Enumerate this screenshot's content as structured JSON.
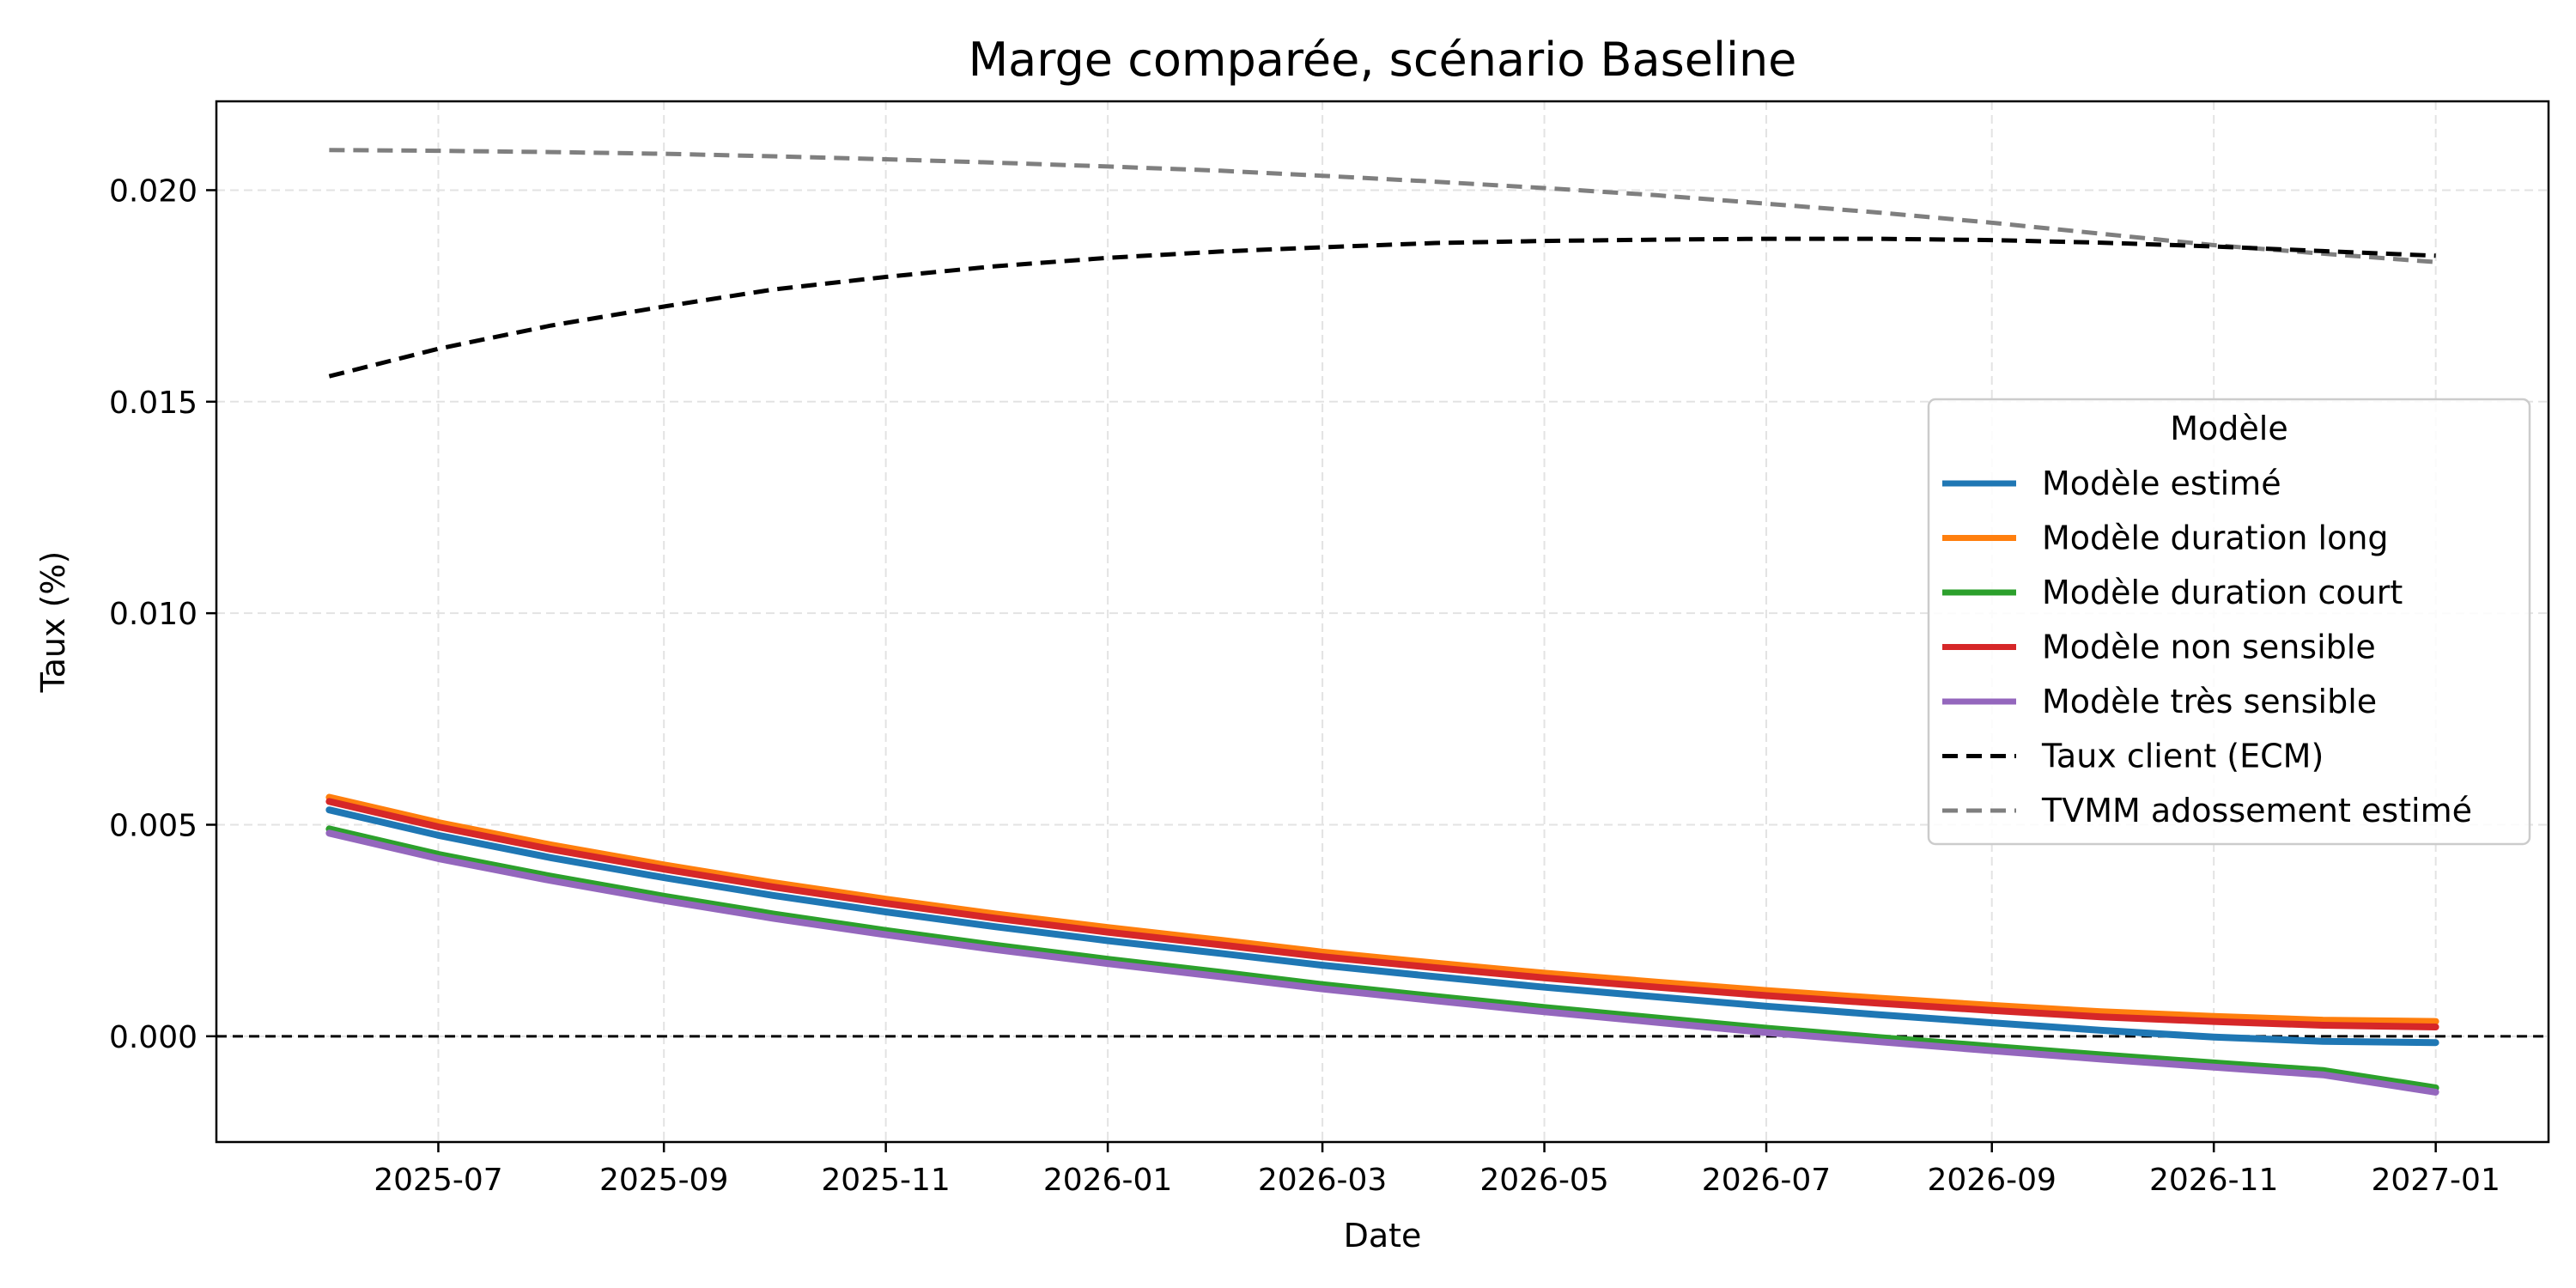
{
  "chart_data": {
    "type": "line",
    "title": "Marge comparée, scénario Baseline",
    "xlabel": "Date",
    "ylabel": "Taux (%)",
    "x_dates": [
      "2025-06-01",
      "2025-07-01",
      "2025-08-01",
      "2025-09-01",
      "2025-10-01",
      "2025-11-01",
      "2025-12-01",
      "2026-01-01",
      "2026-02-01",
      "2026-03-01",
      "2026-04-01",
      "2026-05-01",
      "2026-06-01",
      "2026-07-01",
      "2026-08-01",
      "2026-09-01",
      "2026-10-01",
      "2026-11-01",
      "2026-12-01",
      "2027-01-01"
    ],
    "x_ticks": [
      "2025-07",
      "2025-09",
      "2025-11",
      "2026-01",
      "2026-03",
      "2026-05",
      "2026-07",
      "2026-09",
      "2026-11",
      "2027-01"
    ],
    "xlim": [
      "2025-05-01",
      "2027-02-01"
    ],
    "y_ticks": [
      "0.000",
      "0.005",
      "0.010",
      "0.015",
      "0.020"
    ],
    "ylim": [
      -0.0025,
      0.0221
    ],
    "grid": true,
    "zero_line": true,
    "legend": {
      "title": "Modèle",
      "placement": "center-right"
    },
    "series": [
      {
        "name": "Modèle estimé",
        "color": "#1f77b4",
        "style": "solid",
        "values": [
          0.00535,
          0.00475,
          0.00422,
          0.00375,
          0.00333,
          0.00294,
          0.00259,
          0.00226,
          0.00196,
          0.00168,
          0.00141,
          0.00116,
          0.00093,
          0.00071,
          0.00051,
          0.00032,
          0.00014,
          -2e-05,
          -0.00012,
          -0.00015
        ]
      },
      {
        "name": "Modèle duration long",
        "color": "#ff7f0e",
        "style": "solid",
        "values": [
          0.00565,
          0.00505,
          0.00452,
          0.00405,
          0.00363,
          0.00324,
          0.00289,
          0.00257,
          0.00227,
          0.00199,
          0.00173,
          0.00149,
          0.00128,
          0.00108,
          0.0009,
          0.00073,
          0.00058,
          0.00047,
          0.00038,
          0.00035
        ]
      },
      {
        "name": "Modèle duration court",
        "color": "#2ca02c",
        "style": "solid",
        "values": [
          0.0049,
          0.0043,
          0.00378,
          0.00331,
          0.00289,
          0.0025,
          0.00215,
          0.00182,
          0.00151,
          0.00122,
          0.00094,
          0.00068,
          0.00043,
          0.00019,
          -3e-05,
          -0.00024,
          -0.00044,
          -0.00063,
          -0.00081,
          -0.00122
        ]
      },
      {
        "name": "Modèle non sensible",
        "color": "#d62728",
        "style": "solid",
        "values": [
          0.00555,
          0.00495,
          0.00442,
          0.00395,
          0.00353,
          0.00314,
          0.00279,
          0.00246,
          0.00216,
          0.00188,
          0.00162,
          0.00138,
          0.00116,
          0.00096,
          0.00078,
          0.00061,
          0.00046,
          0.00035,
          0.00026,
          0.00022
        ]
      },
      {
        "name": "Modèle très sensible",
        "color": "#9467bd",
        "style": "solid",
        "values": [
          0.0048,
          0.0042,
          0.00368,
          0.00321,
          0.00279,
          0.0024,
          0.00205,
          0.00172,
          0.00141,
          0.00112,
          0.00084,
          0.00058,
          0.00033,
          9e-05,
          -0.00013,
          -0.00034,
          -0.00054,
          -0.00073,
          -0.00091,
          -0.00132
        ]
      },
      {
        "name": "Taux client (ECM)",
        "color": "#000000",
        "style": "dashed",
        "values": [
          0.0156,
          0.01625,
          0.0168,
          0.01725,
          0.01765,
          0.01795,
          0.0182,
          0.0184,
          0.01855,
          0.01865,
          0.01875,
          0.0188,
          0.01883,
          0.01885,
          0.01885,
          0.01882,
          0.01876,
          0.01867,
          0.01856,
          0.01845
        ]
      },
      {
        "name": "TVMM adossement estimé",
        "color": "#7f7f7f",
        "style": "dashed",
        "values": [
          0.02095,
          0.02093,
          0.0209,
          0.02086,
          0.0208,
          0.02073,
          0.02065,
          0.02056,
          0.02046,
          0.02034,
          0.0202,
          0.02005,
          0.01988,
          0.01968,
          0.01947,
          0.01923,
          0.01897,
          0.0187,
          0.0185,
          0.0183
        ]
      }
    ]
  }
}
